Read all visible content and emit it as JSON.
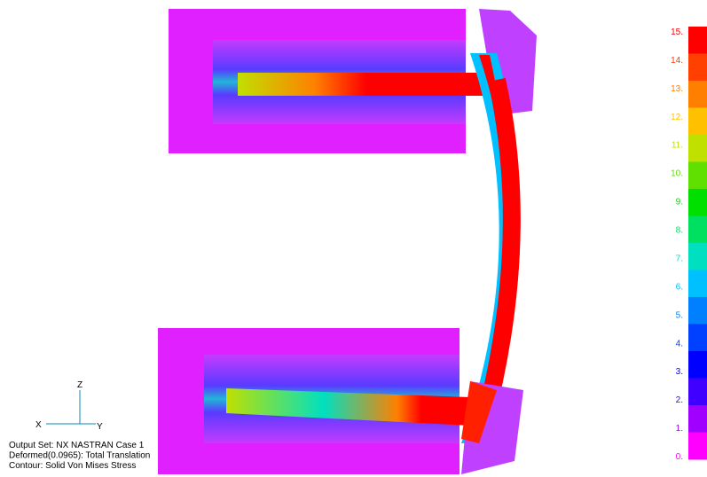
{
  "legend": {
    "labels": [
      "15.",
      "14.",
      "13.",
      "12.",
      "11.",
      "10.",
      "9.",
      "8.",
      "7.",
      "6.",
      "5.",
      "4.",
      "3.",
      "2.",
      "1.",
      "0."
    ],
    "colors": [
      "#ff0000",
      "#ff4000",
      "#ff8000",
      "#ffc000",
      "#c0e000",
      "#60e000",
      "#00e000",
      "#00e060",
      "#00e0c0",
      "#00c0ff",
      "#0080ff",
      "#0040ff",
      "#0000ff",
      "#4000ff",
      "#a000ff",
      "#ff00ff"
    ]
  },
  "triad": {
    "x": "X",
    "y": "Y",
    "z": "Z"
  },
  "info": [
    "Output Set: NX NASTRAN Case 1",
    "Deformed(0.0965): Total Translation",
    "Contour: Solid Von Mises Stress"
  ]
}
